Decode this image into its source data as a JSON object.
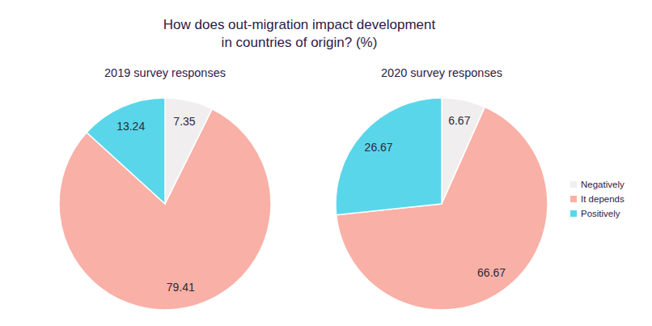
{
  "chart_data": {
    "type": "pie",
    "title": "How does out-migration impact development in countries of origin? (%)",
    "categories": [
      "Negatively",
      "It depends",
      "Positively"
    ],
    "colors": [
      "#f0eeee",
      "#f9b0a6",
      "#5ad6ea"
    ],
    "series": [
      {
        "name": "2019 survey responses",
        "values": [
          7.35,
          79.41,
          13.24
        ]
      },
      {
        "name": "2020 survey responses",
        "values": [
          6.67,
          66.67,
          26.67
        ]
      }
    ],
    "data_labels": true,
    "legend": "right"
  }
}
